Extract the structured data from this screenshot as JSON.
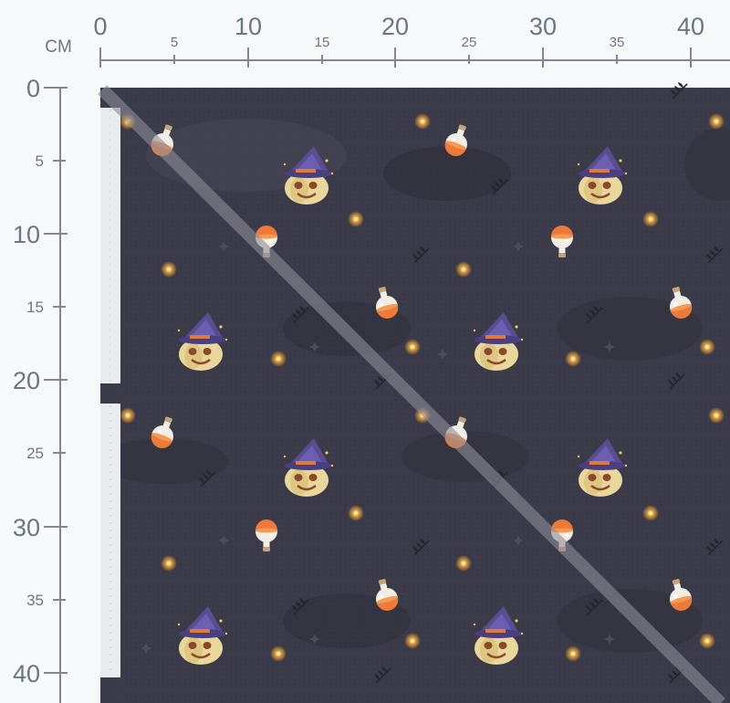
{
  "unit_label": "CM",
  "top_ruler": {
    "major_labels": [
      "0",
      "10",
      "20",
      "30",
      "40"
    ],
    "minor_labels": [
      "5",
      "15",
      "25",
      "35"
    ]
  },
  "left_ruler": {
    "major_labels": [
      "0",
      "10",
      "20",
      "30",
      "40"
    ],
    "minor_labels": [
      "5",
      "15",
      "25",
      "35"
    ]
  },
  "fabric": {
    "background_color": "#3a3a48",
    "pattern_motifs": [
      "pumpkin-witch-hat-icon",
      "potion-bottle-icon",
      "star-icon",
      "leaf-sprig-icon"
    ],
    "accent_colors": {
      "pumpkin": "#e9d69a",
      "hat": "#5a4d93",
      "potion": "#ee7a3a",
      "glow": "#f3a93a"
    }
  },
  "colors": {
    "ruler_bg": "#f6f8fa",
    "ruler_line": "#7d8894",
    "selvedge": "#e9ecee"
  }
}
